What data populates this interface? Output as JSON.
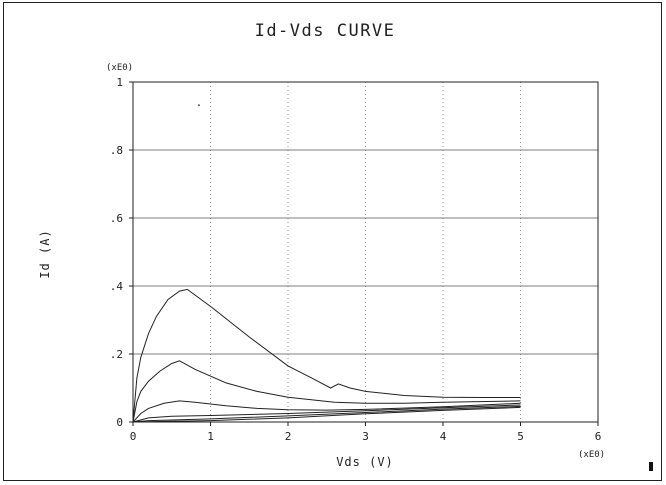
{
  "chart_data": {
    "type": "line",
    "title": "Id-Vds CURVE",
    "xlabel": "Vds (V)",
    "ylabel": "Id (A)",
    "x_scale_label": "(xE0)",
    "y_scale_label": "(xE0)",
    "xlim": [
      0,
      6
    ],
    "ylim": [
      0,
      1
    ],
    "x_ticks": [
      0,
      1,
      2,
      3,
      4,
      5,
      6
    ],
    "x_tick_labels": [
      "0",
      "1",
      "2",
      "3",
      "4",
      "5",
      "6"
    ],
    "y_ticks": [
      0,
      0.2,
      0.4,
      0.6,
      0.8,
      1
    ],
    "y_tick_labels": [
      "0",
      ".2",
      ".4",
      ".6",
      ".8",
      "1"
    ],
    "grid": true,
    "series": [
      {
        "x": [
          0,
          0.05,
          0.1,
          0.2,
          0.3,
          0.45,
          0.6,
          0.7,
          1.0,
          1.5,
          2.0,
          2.3,
          2.55,
          2.65,
          2.8,
          3.0,
          3.5,
          4.0,
          4.5,
          5.0
        ],
        "y": [
          0,
          0.13,
          0.19,
          0.26,
          0.31,
          0.36,
          0.385,
          0.39,
          0.34,
          0.25,
          0.165,
          0.13,
          0.1,
          0.112,
          0.1,
          0.09,
          0.078,
          0.073,
          0.072,
          0.072
        ]
      },
      {
        "x": [
          0,
          0.05,
          0.1,
          0.2,
          0.35,
          0.5,
          0.6,
          0.8,
          1.2,
          1.6,
          2.0,
          2.6,
          3.0,
          3.5,
          4.0,
          5.0
        ],
        "y": [
          0,
          0.06,
          0.09,
          0.12,
          0.15,
          0.172,
          0.18,
          0.155,
          0.115,
          0.09,
          0.073,
          0.058,
          0.055,
          0.055,
          0.058,
          0.062
        ]
      },
      {
        "x": [
          0,
          0.1,
          0.2,
          0.4,
          0.6,
          0.8,
          1.2,
          1.6,
          2.0,
          2.5,
          3.0,
          4.0,
          5.0
        ],
        "y": [
          0,
          0.025,
          0.04,
          0.055,
          0.062,
          0.058,
          0.048,
          0.04,
          0.036,
          0.035,
          0.037,
          0.045,
          0.055
        ]
      },
      {
        "x": [
          0,
          0.2,
          0.5,
          1.0,
          2.0,
          3.0,
          4.0,
          5.0
        ],
        "y": [
          0,
          0.012,
          0.017,
          0.019,
          0.025,
          0.033,
          0.042,
          0.05
        ]
      },
      {
        "x": [
          0,
          0.2,
          0.5,
          1.0,
          2.0,
          3.0,
          4.0,
          5.0
        ],
        "y": [
          0,
          0.004,
          0.006,
          0.009,
          0.018,
          0.028,
          0.038,
          0.046
        ]
      },
      {
        "x": [
          0,
          0.5,
          1.0,
          2.0,
          3.0,
          4.0,
          5.0
        ],
        "y": [
          0,
          0.002,
          0.004,
          0.012,
          0.024,
          0.034,
          0.043
        ]
      }
    ],
    "annotations": [
      {
        "text": ".",
        "x": 0.85,
        "y": 0.93
      }
    ]
  }
}
